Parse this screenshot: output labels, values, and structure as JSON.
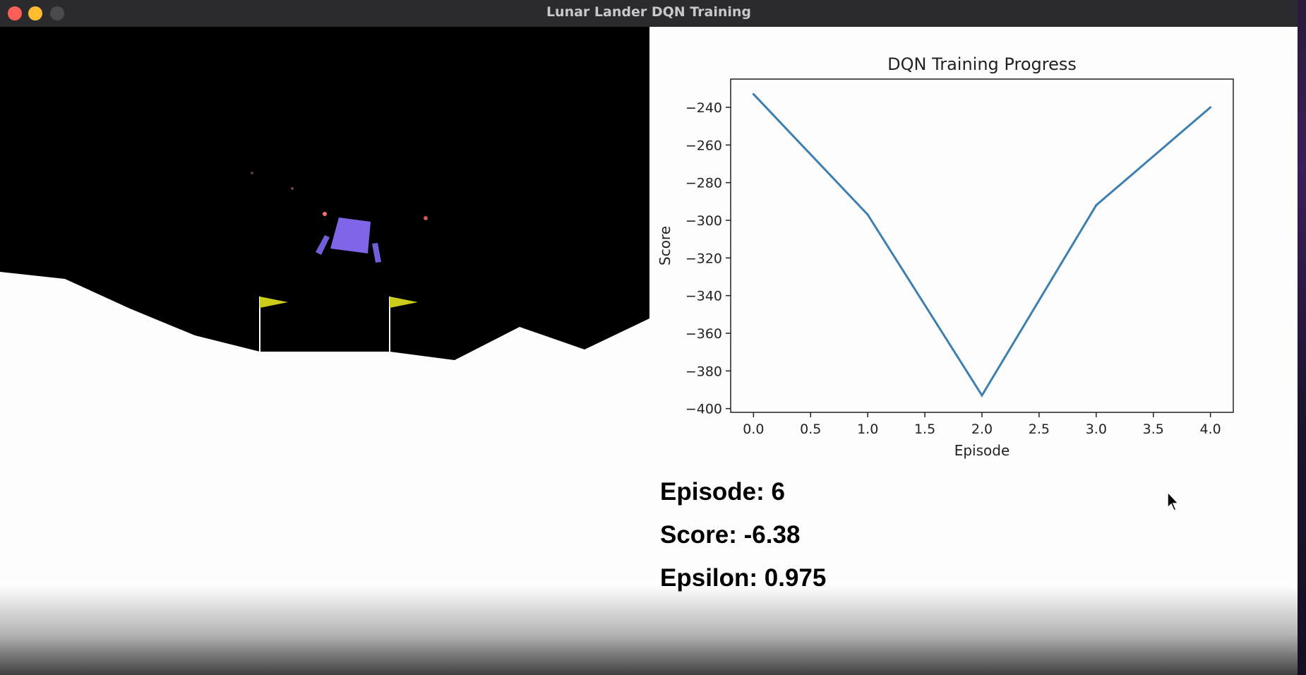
{
  "window": {
    "title": "Lunar Lander DQN Training",
    "controls": [
      "close",
      "minimize",
      "maximize"
    ]
  },
  "game": {
    "sky_color": "#000000",
    "ground_color": "#fdfdfd",
    "lander_color": "#8066e6",
    "leg_color": "#6f5fd8",
    "flag_color": "#cccc1a",
    "particle_color": "#ff6666"
  },
  "stats": {
    "episode": "Episode: 6",
    "score": "Score: -6.38",
    "epsilon": "Epsilon: 0.975"
  },
  "chart_data": {
    "type": "line",
    "title": "DQN Training Progress",
    "xlabel": "Episode",
    "ylabel": "Score",
    "x": [
      0,
      1,
      2,
      3,
      4
    ],
    "series": [
      {
        "values": [
          -233,
          -297,
          -393,
          -292,
          -240
        ],
        "color": "#3d7fb0"
      }
    ],
    "xlim": [
      -0.2,
      4.2
    ],
    "ylim": [
      -402,
      -225
    ],
    "xticks": [
      "0.0",
      "0.5",
      "1.0",
      "1.5",
      "2.0",
      "2.5",
      "3.0",
      "3.5",
      "4.0"
    ],
    "yticks": [
      "-240",
      "-260",
      "-280",
      "-300",
      "-320",
      "-340",
      "-360",
      "-380",
      "-400"
    ],
    "grid": false,
    "legend": "none"
  }
}
